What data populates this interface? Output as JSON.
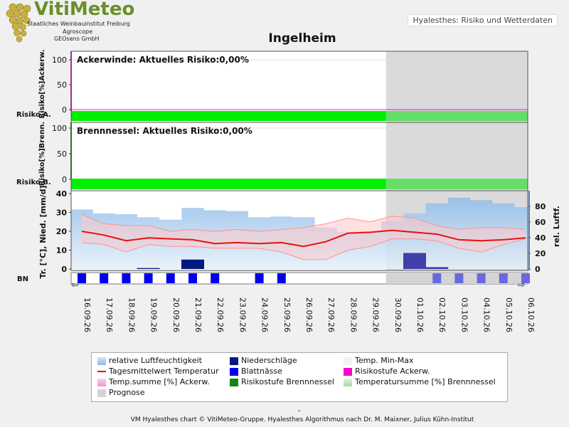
{
  "brand": {
    "name": "VitiMeteo",
    "lines": [
      "Staatliches Weinbauinstitut Freiburg",
      "Agroscope",
      "GEOsens GmbH"
    ],
    "colors": {
      "grape": "#c9b040",
      "leaf": "#6a8e2a"
    }
  },
  "window_title": "Hyalesthes: Risiko und Wetterdaten",
  "chart_title": "Ingelheim",
  "footer": "VM Hyalesthes chart © VitiMeteo-Gruppe. Hyalesthes Algorithmus nach Dr. M. Maixner, Julius Kühn-Institut",
  "colors": {
    "risk_ok": "#00ee00",
    "risk_ok_forecast": "#66dd66",
    "humidity": "#9ec8f0",
    "temp_range": "#ffc8c8",
    "temp_mean": "#e81010",
    "precip": "#001a80",
    "leafwet": "#0000ee",
    "forecast_shade": "#d4d4d4",
    "ackerwinde": "#ff00cc",
    "brennnessel": "#118811"
  },
  "chart_data": [
    {
      "type": "area",
      "panel": "Ackerwinde",
      "title": "Ackerwinde: Aktuelles Risiko:0,00%",
      "ylabel": "Risiko[%]Ackerw.",
      "ylim": [
        0,
        100
      ],
      "yticks": [
        0,
        50,
        100
      ],
      "risk_label": "Risiko A.",
      "values": [
        0,
        0,
        0,
        0,
        0,
        0,
        0,
        0,
        0,
        0,
        0,
        0,
        0,
        0,
        0,
        0,
        0,
        0,
        0,
        0,
        0
      ],
      "risk_level": "none"
    },
    {
      "type": "area",
      "panel": "Brennnessel",
      "title": "Brennnessel: Aktuelles Risiko:0,00%",
      "ylabel": "Risiko[%]Brenn.",
      "ylim": [
        0,
        100
      ],
      "yticks": [
        0,
        50,
        100
      ],
      "risk_label": "Risiko B.",
      "values": [
        0,
        0,
        0,
        0,
        0,
        0,
        0,
        0,
        0,
        0,
        0,
        0,
        0,
        0,
        0,
        0,
        0,
        0,
        0,
        0,
        0
      ],
      "risk_level": "none"
    },
    {
      "type": "line",
      "panel": "Wetter",
      "ylabel_left": "Tr. [°C], Nied. [mm/d]",
      "ylabel_right": "rel. Luftf.",
      "ylim_left": [
        0,
        40
      ],
      "yticks_left": [
        0,
        10,
        20,
        30,
        40
      ],
      "ylim_right": [
        0,
        100
      ],
      "yticks_right": [
        0,
        20,
        40,
        60,
        80
      ],
      "bn_label": "BN",
      "categories": [
        "16.09.26",
        "17.09.26",
        "18.09.26",
        "19.09.26",
        "20.09.26",
        "21.09.26",
        "22.09.26",
        "23.09.26",
        "24.09.26",
        "25.09.26",
        "26.09.26",
        "27.09.26",
        "28.09.26",
        "29.09.26",
        "30.09.26",
        "01.10.26",
        "02.10.26",
        "03.10.26",
        "04.10.26",
        "05.10.26",
        "06.10.26"
      ],
      "forecast_start": "30.09.26",
      "series": [
        {
          "name": "relative Luftfeuchtigkeit",
          "axis": "right",
          "values": [
            76,
            71,
            70,
            66,
            63,
            78,
            75,
            74,
            66,
            67,
            66,
            53,
            47,
            48,
            61,
            71,
            84,
            91,
            88,
            84,
            79
          ]
        },
        {
          "name": "Temp. Min-Max",
          "kind": "range",
          "min": [
            14,
            13,
            9,
            13,
            12,
            12,
            11,
            11,
            11,
            9,
            5,
            5,
            10,
            12,
            16,
            16,
            15,
            11,
            9,
            13,
            16
          ],
          "max": [
            29,
            24,
            23,
            23,
            20,
            21,
            20,
            21,
            20,
            21,
            22,
            24,
            27,
            25,
            28,
            27,
            23,
            21,
            22,
            22,
            21
          ]
        },
        {
          "name": "Tagesmittelwert Temperatur",
          "values": [
            20,
            18,
            15,
            16.5,
            16,
            15.5,
            13.5,
            14,
            13.5,
            14,
            12,
            14.5,
            19,
            19.5,
            20.5,
            19.5,
            18.5,
            15.5,
            15,
            15.5,
            16.5
          ]
        },
        {
          "name": "Niederschläge",
          "values": [
            0,
            0,
            0,
            0.5,
            0,
            5,
            0,
            0,
            0,
            0,
            0,
            0,
            0,
            0,
            0,
            8.5,
            1,
            0,
            0,
            0,
            0
          ]
        },
        {
          "name": "Blattnässe",
          "days": [
            "16.09.26",
            "17.09.26",
            "18.09.26",
            "19.09.26",
            "20.09.26",
            "21.09.26",
            "22.09.26",
            "24.09.26",
            "25.09.26",
            "02.10.26",
            "03.10.26",
            "04.10.26",
            "05.10.26",
            "06.10.26"
          ]
        }
      ]
    }
  ],
  "legend": [
    {
      "label": "relative Luftfeuchtigkeit",
      "swatch": "humidity"
    },
    {
      "label": "Niederschläge",
      "swatch": "precip"
    },
    {
      "label": "Temp. Min-Max",
      "swatch": "temp_range_light"
    },
    {
      "label": "Tagesmittelwert Temperatur",
      "swatch": "temp_mean"
    },
    {
      "label": "Blattnässe",
      "swatch": "leafwet"
    },
    {
      "label": "Risikostufe Ackerw.",
      "swatch": "ackerwinde"
    },
    {
      "label": "Temp.summe [%] Ackerw.",
      "swatch": "tempsum_ackerwinde"
    },
    {
      "label": "Risikostufe Brennnessel",
      "swatch": "brennnessel"
    },
    {
      "label": "Temperatursumme [%] Brennnessel",
      "swatch": "tempsum_brennnessel"
    },
    {
      "label": "Prognose",
      "swatch": "forecast"
    }
  ],
  "bottom_mark": "-"
}
